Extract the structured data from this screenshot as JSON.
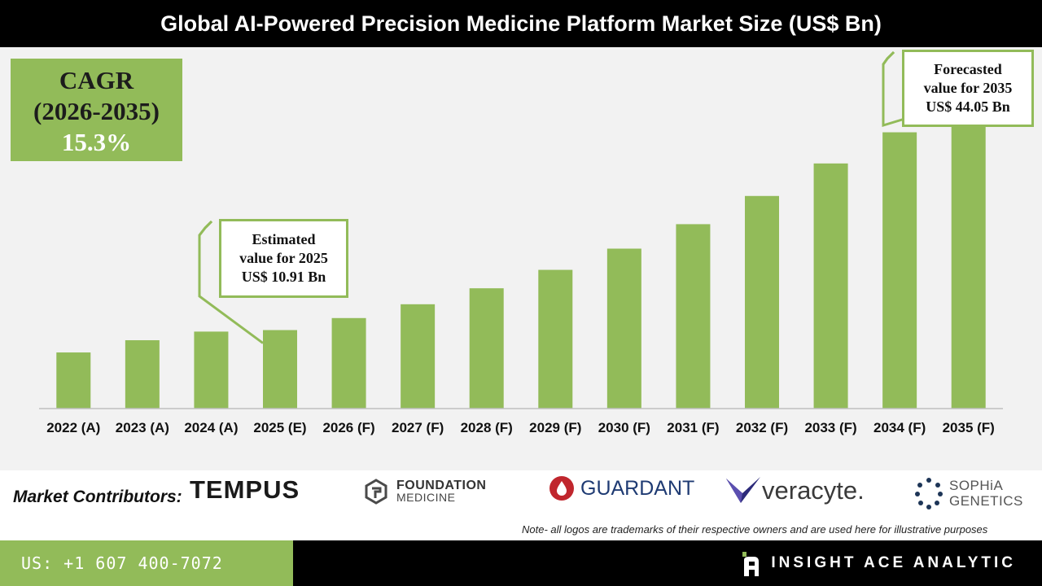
{
  "header": {
    "title": "Global AI-Powered Precision Medicine Platform Market Size (US$ Bn)"
  },
  "cagr": {
    "label": "CAGR",
    "period": "(2026-2035)",
    "value": "15.3%"
  },
  "callouts": {
    "estimated": {
      "line1": "Estimated",
      "line2": "value for 2025",
      "line3": "US$ 10.91 Bn"
    },
    "forecasted": {
      "line1": "Forecasted",
      "line2": "value for 2035",
      "line3": "US$ 44.05 Bn"
    }
  },
  "chart_data": {
    "type": "bar",
    "title": "Global AI-Powered Precision Medicine Platform Market Size (US$ Bn)",
    "categories": [
      "2022 (A)",
      "2023 (A)",
      "2024 (A)",
      "2025 (E)",
      "2026 (F)",
      "2027 (F)",
      "2028 (F)",
      "2029 (F)",
      "2030 (F)",
      "2031 (F)",
      "2032 (F)",
      "2033 (F)",
      "2034 (F)",
      "2035 (F)"
    ],
    "values": [
      7.8,
      9.5,
      10.7,
      10.91,
      12.58,
      14.5,
      16.72,
      19.28,
      22.23,
      25.63,
      29.55,
      34.07,
      38.4,
      44.05
    ],
    "ylim": [
      0,
      50
    ],
    "grid": false,
    "bar_color": "#92bb59"
  },
  "footer": {
    "contributors_label": "Market Contributors:",
    "logos": {
      "tempus": "TEMPUS",
      "foundation_line1": "FOUNDATION",
      "foundation_line2": "MEDICINE",
      "guardant": "GUARDANT",
      "veracyte": "veracyte.",
      "sophia_line1": "SOPHiA",
      "sophia_line2": "GENETICS"
    },
    "note": "Note- all logos are trademarks of their respective owners and are used here for illustrative purposes",
    "phone": "US: +1 607 400-7072",
    "brand": "INSIGHT ACE ANALYTIC"
  },
  "colors": {
    "accent": "#92bb59",
    "header_bg": "#000000",
    "plot_bg": "#f2f2f2"
  }
}
